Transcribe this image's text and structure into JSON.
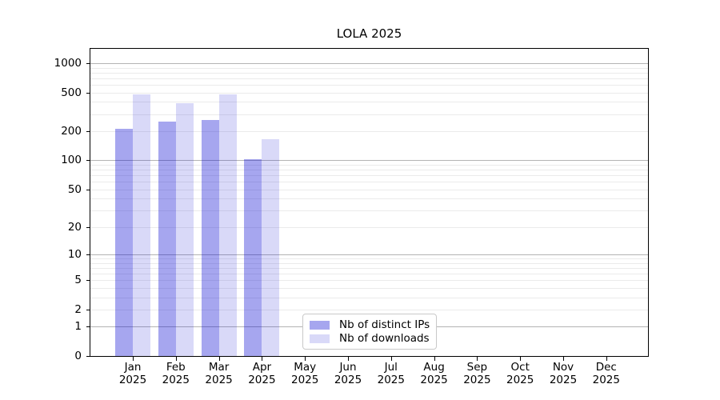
{
  "title": "LOLA 2025",
  "chart_data": {
    "type": "bar",
    "title": "LOLA 2025",
    "categories": [
      "Jan",
      "Feb",
      "Mar",
      "Apr",
      "May",
      "Jun",
      "Jul",
      "Aug",
      "Sep",
      "Oct",
      "Nov",
      "Dec"
    ],
    "x_tick_year": "2025",
    "series": [
      {
        "name": "Nb of distinct IPs",
        "color": "rgba(0,0,208,0.35)",
        "values": [
          213,
          250,
          263,
          103,
          null,
          null,
          null,
          null,
          null,
          null,
          null,
          null
        ]
      },
      {
        "name": "Nb of downloads",
        "color": "rgba(0,0,208,0.15)",
        "values": [
          477,
          390,
          474,
          166,
          null,
          null,
          null,
          null,
          null,
          null,
          null,
          null
        ]
      }
    ],
    "y_axis": {
      "scale": "log(v+1)",
      "tick_labels": [
        "1000",
        "500",
        "200",
        "100",
        "50",
        "20",
        "10",
        "5",
        "2",
        "1",
        "0"
      ],
      "tick_values": [
        1000,
        500,
        200,
        100,
        50,
        20,
        10,
        5,
        2,
        1,
        0
      ],
      "major_grid_values": [
        1,
        10,
        100,
        1000
      ],
      "minor_grid_values": [
        2,
        3,
        4,
        5,
        6,
        7,
        8,
        9,
        20,
        30,
        40,
        50,
        60,
        70,
        80,
        90,
        200,
        300,
        400,
        500,
        600,
        700,
        800,
        900
      ]
    },
    "grid": true,
    "legend_position": "lower center"
  },
  "colors": {
    "bar_distinct_ips": "rgba(0,0,208,0.35)",
    "bar_downloads": "rgba(0,0,208,0.15)",
    "major_grid": "#b4b4b4",
    "minor_grid": "#ebebeb",
    "spine": "#000000",
    "background": "#ffffff"
  }
}
